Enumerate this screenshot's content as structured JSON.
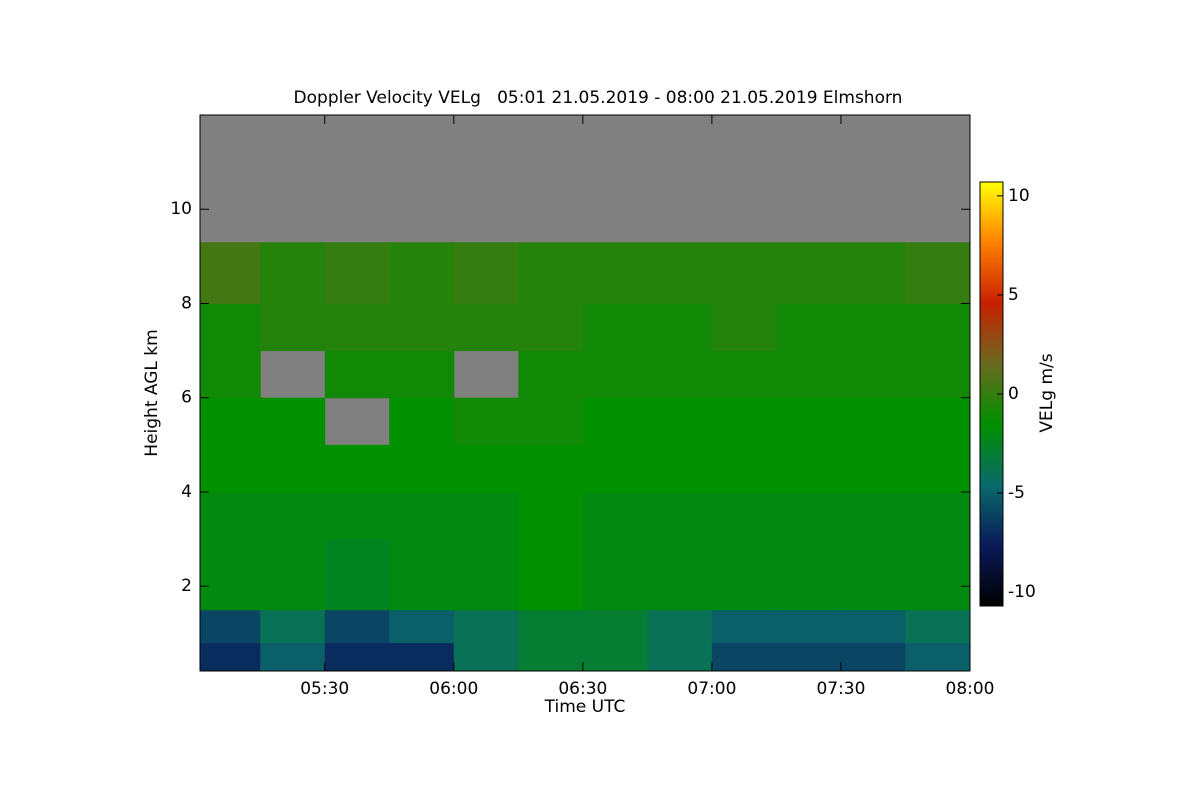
{
  "chart_data": {
    "type": "heatmap",
    "title": "Doppler Velocity VELg   05:01 21.05.2019 - 08:00 21.05.2019 Elmshorn",
    "x_label": "Time UTC",
    "y_label": "Height AGL km",
    "colorbar_label": "VELg m/s",
    "x_edges": [
      5.0167,
      5.25,
      5.5,
      5.75,
      6,
      6.25,
      6.5,
      6.75,
      7,
      7.25,
      7.5,
      7.75,
      8
    ],
    "y_edges": [
      0.2,
      0.8,
      1.5,
      3,
      4,
      5,
      6,
      7,
      8,
      9.3,
      12
    ],
    "z": [
      [
        -7,
        -5,
        -7,
        -7,
        -4,
        -3,
        -3,
        -4,
        -6,
        -6,
        -6,
        -5
      ],
      [
        -6,
        -4,
        -6,
        -5,
        -4,
        -3,
        -3,
        -4,
        -5,
        -5,
        -5,
        -4
      ],
      [
        -2,
        -2,
        -2.5,
        -2,
        -2,
        -1.5,
        -2,
        -2,
        -2,
        -2,
        -2,
        -2
      ],
      [
        -2,
        -2,
        -2,
        -2,
        -2,
        -1.5,
        -2,
        -2,
        -2,
        -2,
        -2,
        -2
      ],
      [
        -1.5,
        -1.5,
        -1.5,
        -1.5,
        -1.5,
        -1.5,
        -1.5,
        -1.5,
        -1.5,
        -1.5,
        -1.5,
        -1.5
      ],
      [
        -1.5,
        -1.5,
        null,
        -1.5,
        -1,
        -1,
        -1.5,
        -1.5,
        -1.5,
        -1.5,
        -1.5,
        -1.5
      ],
      [
        -1,
        null,
        -1,
        -1,
        null,
        -1,
        -1,
        -1,
        -1,
        -1,
        -1,
        -1
      ],
      [
        -1,
        -0.5,
        -0.5,
        -0.5,
        -0.5,
        -0.5,
        -1,
        -1,
        -0.5,
        -1,
        -1,
        -1
      ],
      [
        0.5,
        -0.5,
        0,
        -0.5,
        0,
        -0.5,
        -0.5,
        -0.5,
        -0.5,
        -0.5,
        -0.5,
        0
      ],
      [
        null,
        null,
        null,
        null,
        null,
        null,
        null,
        null,
        null,
        null,
        null,
        null
      ]
    ],
    "null_color": "#808080",
    "colormap": [
      "#000000",
      "#0a1a5a",
      "#0a6a6a",
      "#009000",
      "#6a6a20",
      "#c82000",
      "#ff8000",
      "#ffff00"
    ],
    "xlim": [
      5.0167,
      8
    ],
    "ylim": [
      0.2,
      12
    ],
    "zlim": [
      -10.7,
      10.7
    ],
    "xticks": [
      {
        "value": 5.5,
        "label": "05:30"
      },
      {
        "value": 6,
        "label": "06:00"
      },
      {
        "value": 6.5,
        "label": "06:30"
      },
      {
        "value": 7,
        "label": "07:00"
      },
      {
        "value": 7.5,
        "label": "07:30"
      },
      {
        "value": 8,
        "label": "08:00"
      }
    ],
    "yticks": [
      2,
      4,
      6,
      8,
      10
    ],
    "zticks": [
      -10,
      -5,
      0,
      5,
      10
    ],
    "grid": false
  }
}
